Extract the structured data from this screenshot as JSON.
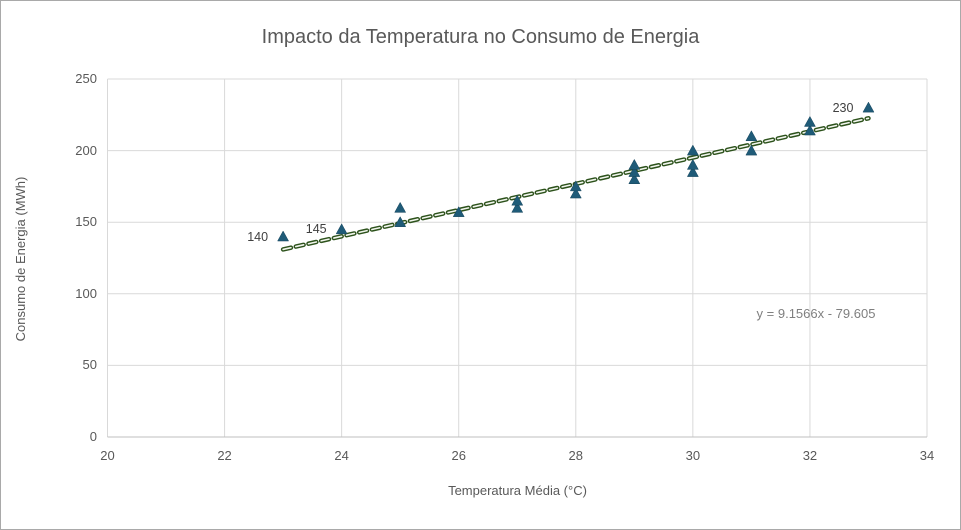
{
  "chart_data": {
    "type": "scatter",
    "title": "Impacto da Temperatura no Consumo de Energia",
    "xlabel": "Temperatura Média (°C)",
    "ylabel": "Consumo de Energia (MWh)",
    "xlim": [
      20,
      34
    ],
    "ylim": [
      0,
      250
    ],
    "x_ticks": [
      20,
      22,
      24,
      26,
      28,
      30,
      32,
      34
    ],
    "y_ticks": [
      0,
      50,
      100,
      150,
      200,
      250
    ],
    "grid": true,
    "legend": "none",
    "series_name": "Consumo de Energia",
    "points": [
      {
        "x": 23,
        "y": 140,
        "label": "140"
      },
      {
        "x": 24,
        "y": 145,
        "label": "145"
      },
      {
        "x": 25,
        "y": 150
      },
      {
        "x": 25,
        "y": 160
      },
      {
        "x": 26,
        "y": 157
      },
      {
        "x": 27,
        "y": 160
      },
      {
        "x": 27,
        "y": 165
      },
      {
        "x": 28,
        "y": 170
      },
      {
        "x": 28,
        "y": 175
      },
      {
        "x": 29,
        "y": 180
      },
      {
        "x": 29,
        "y": 185
      },
      {
        "x": 29,
        "y": 190
      },
      {
        "x": 30,
        "y": 185
      },
      {
        "x": 30,
        "y": 190
      },
      {
        "x": 30,
        "y": 200
      },
      {
        "x": 31,
        "y": 200
      },
      {
        "x": 31,
        "y": 210
      },
      {
        "x": 32,
        "y": 214
      },
      {
        "x": 32,
        "y": 220
      },
      {
        "x": 33,
        "y": 230,
        "label": "230"
      }
    ],
    "trendline": {
      "type": "linear",
      "slope": 9.1566,
      "intercept": -79.605,
      "x_start": 23,
      "x_end": 33,
      "style": "dashed",
      "equation_label": "y = 9.1566x - 79.605"
    },
    "colors": {
      "marker": "#1f5b78",
      "marker_edge": "#17455c",
      "trendline_outer": "#2d521c",
      "trendline_inner": "#f2f6ee",
      "gridline": "#d9d9d9",
      "axis_line": "#bfbfbf",
      "title_text": "#595959",
      "axis_text": "#595959",
      "point_label_text": "#404040",
      "equation_text": "#7f7f7f"
    }
  }
}
